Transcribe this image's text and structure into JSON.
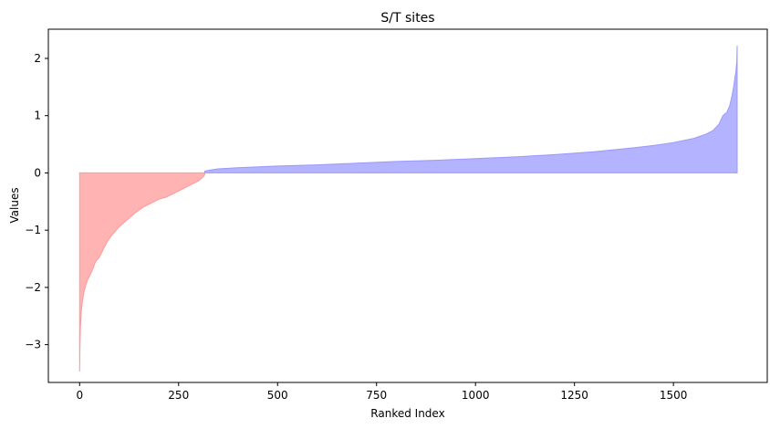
{
  "chart_data": {
    "type": "area",
    "title": "S/T sites",
    "xlabel": "Ranked Index",
    "ylabel": "Values",
    "xlim": [
      -79,
      1737
    ],
    "ylim": [
      -3.66,
      2.51
    ],
    "xticks": [
      0,
      250,
      500,
      750,
      1000,
      1250,
      1500
    ],
    "yticks": [
      2,
      1,
      0,
      -1,
      -2,
      -3
    ],
    "ytick_labels": [
      "2",
      "1",
      "0",
      "−1",
      "−2",
      "−3"
    ],
    "grid": false,
    "legend": "none",
    "series": [
      {
        "color": "#ff9999",
        "points": [
          [
            0,
            -3.47
          ],
          [
            1,
            -3.0
          ],
          [
            2,
            -2.7
          ],
          [
            4,
            -2.45
          ],
          [
            6,
            -2.3
          ],
          [
            8,
            -2.2
          ],
          [
            12,
            -2.05
          ],
          [
            16,
            -1.95
          ],
          [
            20,
            -1.87
          ],
          [
            25,
            -1.8
          ],
          [
            30,
            -1.73
          ],
          [
            35,
            -1.65
          ],
          [
            40,
            -1.55
          ],
          [
            50,
            -1.47
          ],
          [
            60,
            -1.33
          ],
          [
            70,
            -1.2
          ],
          [
            80,
            -1.1
          ],
          [
            90,
            -1.02
          ],
          [
            100,
            -0.94
          ],
          [
            120,
            -0.82
          ],
          [
            140,
            -0.7
          ],
          [
            160,
            -0.6
          ],
          [
            180,
            -0.53
          ],
          [
            200,
            -0.46
          ],
          [
            220,
            -0.42
          ],
          [
            240,
            -0.35
          ],
          [
            260,
            -0.28
          ],
          [
            280,
            -0.21
          ],
          [
            300,
            -0.14
          ],
          [
            312,
            -0.07
          ],
          [
            316,
            -0.03
          ]
        ]
      },
      {
        "color": "#9999ff",
        "points": [
          [
            316,
            0.03
          ],
          [
            330,
            0.05
          ],
          [
            350,
            0.07
          ],
          [
            400,
            0.09
          ],
          [
            500,
            0.12
          ],
          [
            600,
            0.14
          ],
          [
            700,
            0.17
          ],
          [
            800,
            0.2
          ],
          [
            900,
            0.22
          ],
          [
            1000,
            0.25
          ],
          [
            1100,
            0.28
          ],
          [
            1200,
            0.32
          ],
          [
            1300,
            0.37
          ],
          [
            1400,
            0.44
          ],
          [
            1450,
            0.48
          ],
          [
            1500,
            0.53
          ],
          [
            1550,
            0.6
          ],
          [
            1580,
            0.67
          ],
          [
            1600,
            0.74
          ],
          [
            1615,
            0.85
          ],
          [
            1625,
            1.0
          ],
          [
            1635,
            1.06
          ],
          [
            1642,
            1.17
          ],
          [
            1648,
            1.35
          ],
          [
            1652,
            1.5
          ],
          [
            1655,
            1.65
          ],
          [
            1658,
            1.78
          ],
          [
            1660,
            1.95
          ],
          [
            1661,
            2.22
          ]
        ]
      }
    ]
  }
}
